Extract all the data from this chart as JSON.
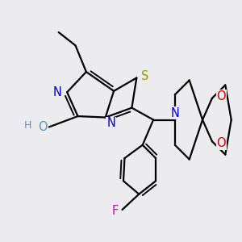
{
  "bg_color": "#ebebf0",
  "bond_color": "#000000",
  "bond_width": 1.6,
  "atom_colors": {
    "N": "#0000cc",
    "S": "#999900",
    "O": "#cc0000",
    "F": "#cc00cc",
    "OH": "#5599aa",
    "H": "#5599aa"
  }
}
